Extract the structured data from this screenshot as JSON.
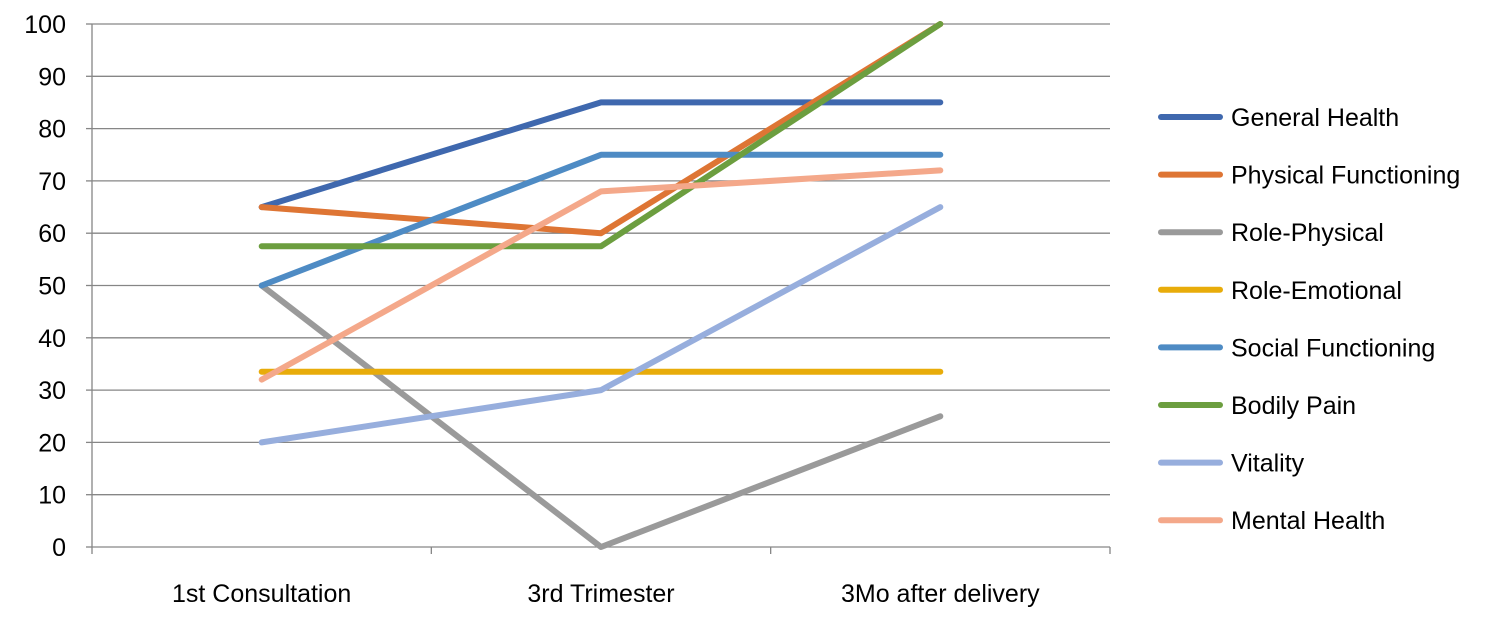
{
  "chart_data": {
    "type": "line",
    "categories": [
      "1st Consultation",
      "3rd Trimester",
      "3Mo after delivery"
    ],
    "ylim": [
      0,
      100
    ],
    "yticks": [
      0,
      10,
      20,
      30,
      40,
      50,
      60,
      70,
      80,
      90,
      100
    ],
    "grid": true,
    "legend_position": "right",
    "series": [
      {
        "name": "General Health",
        "color": "#3F68AE",
        "values": [
          65,
          85,
          85
        ]
      },
      {
        "name": "Physical Functioning",
        "color": "#DE7534",
        "values": [
          65,
          60,
          100
        ]
      },
      {
        "name": "Role-Physical",
        "color": "#9A9A9A",
        "values": [
          50,
          0,
          25
        ]
      },
      {
        "name": "Role-Emotional",
        "color": "#E8AC0A",
        "values": [
          33.5,
          33.5,
          33.5
        ]
      },
      {
        "name": "Social Functioning",
        "color": "#4E8BC4",
        "values": [
          50,
          75,
          75
        ]
      },
      {
        "name": "Bodily Pain",
        "color": "#6C9E3F",
        "values": [
          57.5,
          57.5,
          100
        ]
      },
      {
        "name": "Vitality",
        "color": "#97AEDD",
        "values": [
          20,
          30,
          65
        ]
      },
      {
        "name": "Mental Health",
        "color": "#F4A88A",
        "values": [
          32,
          68,
          72
        ]
      }
    ]
  }
}
